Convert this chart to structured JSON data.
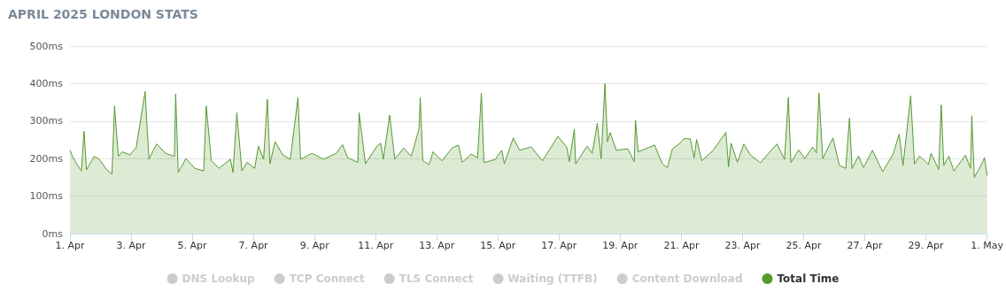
{
  "chart_data": {
    "type": "area",
    "title": "APRIL 2025 LONDON STATS",
    "xlim": [
      "2025-04-01T00:00",
      "2025-05-01T00:00"
    ],
    "xticks": [
      {
        "value": "2025-04-01",
        "label": "1. Apr"
      },
      {
        "value": "2025-04-03",
        "label": "3. Apr"
      },
      {
        "value": "2025-04-05",
        "label": "5. Apr"
      },
      {
        "value": "2025-04-07",
        "label": "7. Apr"
      },
      {
        "value": "2025-04-09",
        "label": "9. Apr"
      },
      {
        "value": "2025-04-11",
        "label": "11. Apr"
      },
      {
        "value": "2025-04-13",
        "label": "13. Apr"
      },
      {
        "value": "2025-04-15",
        "label": "15. Apr"
      },
      {
        "value": "2025-04-17",
        "label": "17. Apr"
      },
      {
        "value": "2025-04-19",
        "label": "19. Apr"
      },
      {
        "value": "2025-04-21",
        "label": "21. Apr"
      },
      {
        "value": "2025-04-23",
        "label": "23. Apr"
      },
      {
        "value": "2025-04-25",
        "label": "25. Apr"
      },
      {
        "value": "2025-04-27",
        "label": "27. Apr"
      },
      {
        "value": "2025-04-29",
        "label": "29. Apr"
      },
      {
        "value": "2025-05-01",
        "label": "1. May"
      }
    ],
    "ylim": [
      0,
      500
    ],
    "yticks": [
      {
        "value": 0,
        "label": "0ms"
      },
      {
        "value": 100,
        "label": "100ms"
      },
      {
        "value": 200,
        "label": "200ms"
      },
      {
        "value": 300,
        "label": "300ms"
      },
      {
        "value": 400,
        "label": "400ms"
      },
      {
        "value": 500,
        "label": "500ms"
      }
    ],
    "grid": "y",
    "legend": "bottom",
    "marker": "none",
    "series": [
      {
        "name": "DNS Lookup",
        "color": "#cccccc"
      },
      {
        "name": "TCP Connect",
        "color": "#cccccc"
      },
      {
        "name": "TLS Connect",
        "color": "#cccccc"
      },
      {
        "name": "Waiting (TTFB)",
        "color": "#cccccc"
      },
      {
        "name": "Content Download",
        "color": "#cccccc"
      },
      {
        "name": "Total Time",
        "color": "#55992f",
        "x": [
          "2025-04-01T00:00",
          "2025-04-01T02:00",
          "2025-04-01T06:00",
          "2025-04-01T09:00",
          "2025-04-01T11:00",
          "2025-04-01T13:00",
          "2025-04-01T19:00",
          "2025-04-01T23:00",
          "2025-04-02T05:00",
          "2025-04-02T09:00",
          "2025-04-02T11:00",
          "2025-04-02T14:00",
          "2025-04-02T17:00",
          "2025-04-02T23:00",
          "2025-04-03T04:00",
          "2025-04-03T11:00",
          "2025-04-03T14:00",
          "2025-04-03T20:00",
          "2025-04-04T03:00",
          "2025-04-04T10:00",
          "2025-04-04T11:00",
          "2025-04-04T13:00",
          "2025-04-04T19:00",
          "2025-04-05T02:00",
          "2025-04-05T09:00",
          "2025-04-05T11:00",
          "2025-04-05T15:00",
          "2025-04-05T21:00",
          "2025-04-06T06:00",
          "2025-04-06T08:00",
          "2025-04-06T11:00",
          "2025-04-06T15:00",
          "2025-04-06T19:00",
          "2025-04-07T01:00",
          "2025-04-07T04:00",
          "2025-04-07T08:00",
          "2025-04-07T11:00",
          "2025-04-07T13:00",
          "2025-04-07T17:00",
          "2025-04-07T23:00",
          "2025-04-08T05:00",
          "2025-04-08T11:00",
          "2025-04-08T13:00",
          "2025-04-08T22:00",
          "2025-04-09T07:00",
          "2025-04-09T17:00",
          "2025-04-09T22:00",
          "2025-04-10T02:00",
          "2025-04-10T10:00",
          "2025-04-10T11:00",
          "2025-04-10T16:00",
          "2025-04-11T01:00",
          "2025-04-11T04:00",
          "2025-04-11T06:00",
          "2025-04-11T11:00",
          "2025-04-11T15:00",
          "2025-04-11T22:00",
          "2025-04-12T04:00",
          "2025-04-12T10:00",
          "2025-04-12T11:00",
          "2025-04-12T13:00",
          "2025-04-12T18:00",
          "2025-04-12T21:00",
          "2025-04-13T04:00",
          "2025-04-13T12:00",
          "2025-04-13T17:00",
          "2025-04-13T20:00",
          "2025-04-14T03:00",
          "2025-04-14T08:00",
          "2025-04-14T11:00",
          "2025-04-14T13:00",
          "2025-04-14T22:00",
          "2025-04-15T03:00",
          "2025-04-15T05:00",
          "2025-04-15T12:00",
          "2025-04-15T17:00",
          "2025-04-16T02:00",
          "2025-04-16T11:00",
          "2025-04-16T23:00",
          "2025-04-17T06:00",
          "2025-04-17T08:00",
          "2025-04-17T12:00",
          "2025-04-17T13:00",
          "2025-04-17T22:00",
          "2025-04-18T02:00",
          "2025-04-18T06:00",
          "2025-04-18T09:00",
          "2025-04-18T12:00",
          "2025-04-18T14:00",
          "2025-04-18T16:00",
          "2025-04-18T21:00",
          "2025-04-19T06:00",
          "2025-04-19T11:00",
          "2025-04-19T12:00",
          "2025-04-19T14:00",
          "2025-04-20T03:00",
          "2025-04-20T09:00",
          "2025-04-20T13:00",
          "2025-04-20T17:00",
          "2025-04-20T23:00",
          "2025-04-21T02:00",
          "2025-04-21T07:00",
          "2025-04-21T10:00",
          "2025-04-21T12:00",
          "2025-04-21T16:00",
          "2025-04-22T01:00",
          "2025-04-22T11:00",
          "2025-04-22T13:00",
          "2025-04-22T15:00",
          "2025-04-22T20:00",
          "2025-04-23T01:00",
          "2025-04-23T06:00",
          "2025-04-23T14:00",
          "2025-04-24T03:00",
          "2025-04-24T09:00",
          "2025-04-24T12:00",
          "2025-04-24T14:00",
          "2025-04-24T20:00",
          "2025-04-25T01:00",
          "2025-04-25T07:00",
          "2025-04-25T10:00",
          "2025-04-25T12:00",
          "2025-04-25T15:00",
          "2025-04-25T23:00",
          "2025-04-26T04:00",
          "2025-04-26T09:00",
          "2025-04-26T12:00",
          "2025-04-26T14:00",
          "2025-04-26T19:00",
          "2025-04-26T23:00",
          "2025-04-27T06:00",
          "2025-04-27T14:00",
          "2025-04-27T22:00",
          "2025-04-28T03:00",
          "2025-04-28T06:00",
          "2025-04-28T12:00",
          "2025-04-28T15:00",
          "2025-04-28T19:00",
          "2025-04-29T02:00",
          "2025-04-29T04:00",
          "2025-04-29T10:00",
          "2025-04-29T12:00",
          "2025-04-29T14:00",
          "2025-04-29T18:00",
          "2025-04-29T22:00",
          "2025-04-30T07:00",
          "2025-04-30T11:00",
          "2025-04-30T12:00",
          "2025-04-30T14:00",
          "2025-04-30T18:00",
          "2025-04-30T22:00",
          "2025-05-01T00:00"
        ],
        "values": [
          222,
          206,
          182,
          167,
          273,
          170,
          206,
          198,
          170,
          159,
          340,
          206,
          218,
          210,
          229,
          379,
          198,
          239,
          214,
          206,
          372,
          163,
          200,
          174,
          167,
          340,
          194,
          174,
          198,
          163,
          322,
          167,
          190,
          174,
          233,
          198,
          358,
          186,
          245,
          210,
          198,
          363,
          198,
          214,
          198,
          214,
          237,
          202,
          190,
          322,
          186,
          233,
          241,
          198,
          316,
          198,
          228,
          206,
          279,
          363,
          194,
          184,
          218,
          194,
          228,
          236,
          190,
          212,
          202,
          375,
          189,
          198,
          222,
          186,
          255,
          222,
          231,
          194,
          259,
          231,
          192,
          278,
          186,
          233,
          214,
          294,
          200,
          400,
          245,
          269,
          222,
          226,
          192,
          302,
          218,
          236,
          186,
          176,
          226,
          241,
          253,
          253,
          202,
          251,
          194,
          222,
          270,
          178,
          241,
          190,
          239,
          210,
          189,
          239,
          198,
          363,
          189,
          223,
          200,
          231,
          215,
          375,
          200,
          255,
          182,
          174,
          308,
          173,
          207,
          176,
          222,
          165,
          210,
          265,
          181,
          367,
          186,
          207,
          184,
          214,
          171,
          343,
          182,
          206,
          167,
          209,
          174,
          314,
          150,
          174,
          202,
          155
        ]
      }
    ]
  }
}
